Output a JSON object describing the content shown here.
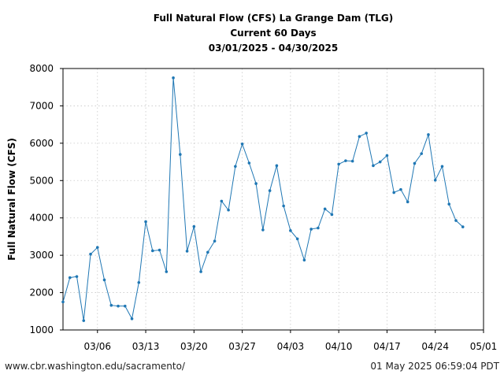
{
  "chart_data": {
    "type": "line",
    "title_lines": [
      "Full Natural Flow (CFS) La Grange Dam (TLG)",
      "Current 60 Days",
      "03/01/2025 - 04/30/2025"
    ],
    "xlabel": "",
    "ylabel": "Full Natural Flow (CFS)",
    "ylim": [
      1000,
      8000
    ],
    "yticks": [
      1000,
      2000,
      3000,
      4000,
      5000,
      6000,
      7000,
      8000
    ],
    "yticklabels": [
      "1000",
      "2000",
      "3000",
      "4000",
      "5000",
      "6000",
      "7000",
      "8000"
    ],
    "xlim_day": [
      0,
      61
    ],
    "xticks_day": [
      5,
      12,
      19,
      26,
      33,
      40,
      47,
      54,
      61
    ],
    "xticklabels": [
      "03/06",
      "03/13",
      "03/20",
      "03/27",
      "04/03",
      "04/10",
      "04/17",
      "04/24",
      "05/01"
    ],
    "grid": true,
    "series_color": "#1f77b4",
    "series": [
      {
        "name": "Full Natural Flow (CFS)",
        "day": [
          0,
          1,
          2,
          3,
          4,
          5,
          6,
          7,
          8,
          9,
          10,
          11,
          12,
          13,
          14,
          15,
          16,
          17,
          18,
          19,
          20,
          21,
          22,
          23,
          24,
          25,
          26,
          27,
          28,
          29,
          30,
          31,
          32,
          33,
          34,
          35,
          36,
          37,
          38,
          39,
          40,
          41,
          42,
          43,
          44,
          45,
          46,
          47,
          48,
          49,
          50,
          51,
          52,
          53,
          54,
          55,
          56,
          57,
          58
        ],
        "values": [
          1750,
          2400,
          2430,
          1250,
          3030,
          3210,
          2340,
          1660,
          1640,
          1640,
          1300,
          2270,
          3900,
          3120,
          3140,
          2560,
          7750,
          5700,
          3110,
          3770,
          2560,
          3080,
          3380,
          4450,
          4210,
          5380,
          5980,
          5470,
          4920,
          3680,
          4730,
          5400,
          4320,
          3660,
          3440,
          2870,
          3700,
          3730,
          4240,
          4090,
          5440,
          5530,
          5520,
          6180,
          6270,
          5400,
          5500,
          5670,
          4680,
          4760,
          4430,
          5460,
          5720,
          6230,
          5010,
          5380,
          4370,
          3930,
          3760
        ]
      }
    ]
  },
  "footer": {
    "source": "www.cbr.washington.edu/sacramento/",
    "timestamp": "01 May 2025 06:59:04 PDT"
  }
}
